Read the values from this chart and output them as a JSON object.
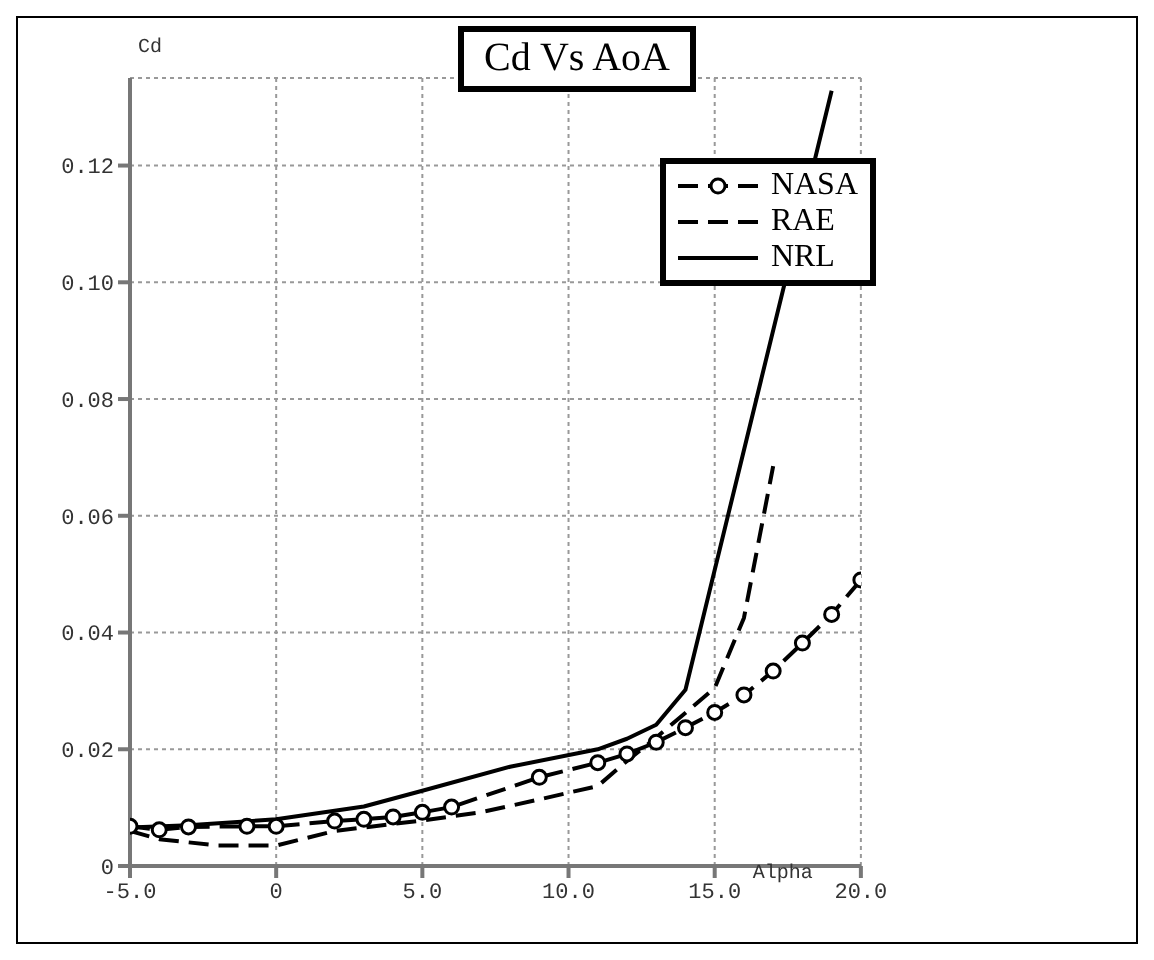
{
  "chart_data": {
    "type": "line",
    "title": "Cd Vs AoA",
    "xlabel": "Alpha",
    "ylabel": "Cd",
    "xlim": [
      -5,
      20
    ],
    "xticks": [
      {
        "value": -5,
        "label": "-5.0"
      },
      0,
      {
        "value": 5,
        "label": "5.0"
      },
      {
        "value": 10,
        "label": "10.0"
      },
      {
        "value": 15,
        "label": "15.0"
      },
      {
        "value": 20,
        "label": "20.0"
      }
    ],
    "ylim": [
      0,
      0.135
    ],
    "yticks": [
      0,
      0.02,
      0.04,
      0.06,
      0.08,
      {
        "value": 0.1,
        "label": "0.10"
      },
      0.12
    ],
    "grid": true,
    "legend": "top right",
    "series": [
      {
        "name": "NASA",
        "color": "#000000",
        "marker": "circle",
        "line_style": "dashed",
        "x": [
          -5,
          -4,
          -3,
          -1,
          0,
          2,
          3,
          4,
          5,
          6,
          9,
          11,
          12,
          13,
          14,
          15,
          16,
          17,
          18,
          19,
          20
        ],
        "values": [
          0.0068,
          0.0062,
          0.0067,
          0.0068,
          0.0068,
          0.0077,
          0.008,
          0.0084,
          0.0092,
          0.0101,
          0.0152,
          0.0177,
          0.0192,
          0.0212,
          0.0237,
          0.0263,
          0.0293,
          0.0334,
          0.0382,
          0.0431,
          0.049
        ]
      },
      {
        "name": "RAE",
        "color": "#000000",
        "marker": "none",
        "line_style": "dashed",
        "x": [
          -5,
          -4,
          -2,
          0,
          2,
          5,
          7,
          9,
          11,
          12,
          13,
          15,
          16,
          17
        ],
        "values": [
          0.006,
          0.0046,
          0.0035,
          0.0035,
          0.006,
          0.0078,
          0.0092,
          0.0114,
          0.0137,
          0.018,
          0.022,
          0.0305,
          0.0425,
          0.0685
        ]
      },
      {
        "name": "NRL",
        "color": "#000000",
        "marker": "none",
        "line_style": "solid",
        "x": [
          -5,
          -3,
          0,
          3,
          5,
          8,
          11,
          12,
          13,
          14,
          19
        ],
        "values": [
          0.0066,
          0.007,
          0.008,
          0.0102,
          0.0129,
          0.017,
          0.02,
          0.0218,
          0.0242,
          0.0302,
          0.1328
        ]
      }
    ]
  }
}
